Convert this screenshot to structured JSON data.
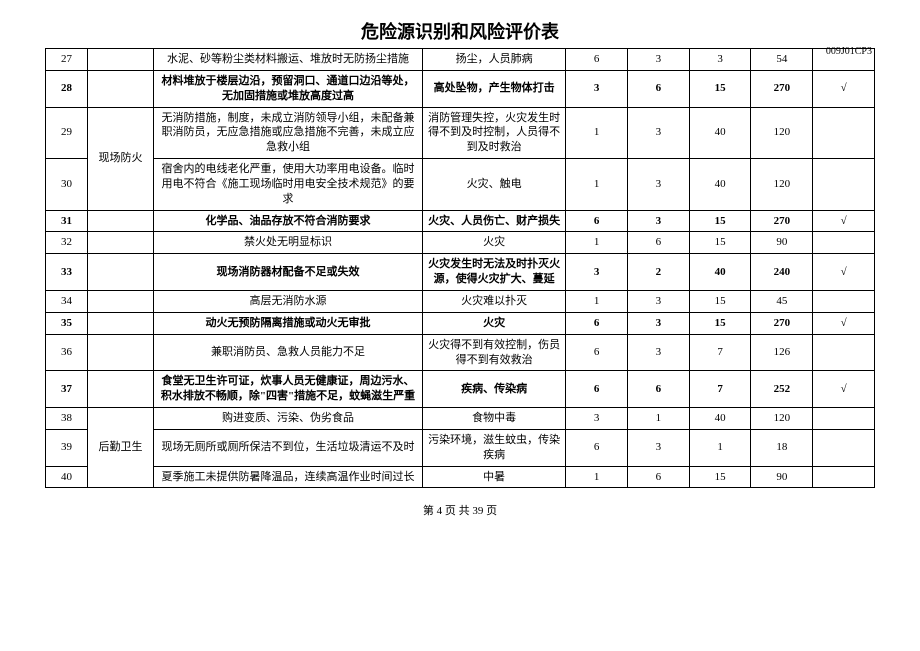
{
  "doc": {
    "title": "危险源识别和风险评价表",
    "code": "009J01CP3",
    "footer": "第 4 页 共 39 页"
  },
  "categories": {
    "cat1": "现场防火",
    "cat2": "后勤卫生"
  },
  "rows": [
    {
      "idx": "27",
      "bold": false,
      "cat": "",
      "catspan": 0,
      "desc": "水泥、砂等粉尘类材料搬运、堆放时无防扬尘措施",
      "effect": "扬尘，人员肺病",
      "c1": "6",
      "c2": "3",
      "c3": "3",
      "c4": "54",
      "chk": ""
    },
    {
      "idx": "28",
      "bold": true,
      "cat": "",
      "catspan": 0,
      "desc": "材料堆放于楼层边沿，预留洞口、通道口边沿等处，无加固措施或堆放高度过高",
      "effect": "高处坠物，产生物体打击",
      "c1": "3",
      "c2": "6",
      "c3": "15",
      "c4": "270",
      "chk": "√"
    },
    {
      "idx": "29",
      "bold": false,
      "cat": "cat1",
      "catspan": 2,
      "desc": "无消防措施，制度，未成立消防领导小组，未配备兼职消防员，无应急措施或应急措施不完善，未成立应急救小组",
      "effect": "消防管理失控，火灾发生时得不到及时控制，人员得不到及时救治",
      "c1": "1",
      "c2": "3",
      "c3": "40",
      "c4": "120",
      "chk": ""
    },
    {
      "idx": "30",
      "bold": false,
      "cat": "",
      "catspan": 0,
      "desc": "宿舍内的电线老化严重，使用大功率用电设备。临时用电不符合《施工现场临时用电安全技术规范》的要求",
      "effect": "火灾、触电",
      "c1": "1",
      "c2": "3",
      "c3": "40",
      "c4": "120",
      "chk": ""
    },
    {
      "idx": "31",
      "bold": true,
      "cat": "",
      "catspan": 0,
      "desc": "化学品、油品存放不符合消防要求",
      "effect": "火灾、人员伤亡、财产损失",
      "c1": "6",
      "c2": "3",
      "c3": "15",
      "c4": "270",
      "chk": "√"
    },
    {
      "idx": "32",
      "bold": false,
      "cat": "",
      "catspan": 0,
      "desc": "禁火处无明显标识",
      "effect": "火灾",
      "c1": "1",
      "c2": "6",
      "c3": "15",
      "c4": "90",
      "chk": ""
    },
    {
      "idx": "33",
      "bold": true,
      "cat": "",
      "catspan": 0,
      "desc": "现场消防器材配备不足或失效",
      "effect": "火灾发生时无法及时扑灭火源，使得火灾扩大、蔓延",
      "c1": "3",
      "c2": "2",
      "c3": "40",
      "c4": "240",
      "chk": "√"
    },
    {
      "idx": "34",
      "bold": false,
      "cat": "",
      "catspan": 0,
      "desc": "高层无消防水源",
      "effect": "火灾难以扑灭",
      "c1": "1",
      "c2": "3",
      "c3": "15",
      "c4": "45",
      "chk": ""
    },
    {
      "idx": "35",
      "bold": true,
      "cat": "",
      "catspan": 0,
      "desc": "动火无预防隔离措施或动火无审批",
      "effect": "火灾",
      "c1": "6",
      "c2": "3",
      "c3": "15",
      "c4": "270",
      "chk": "√"
    },
    {
      "idx": "36",
      "bold": false,
      "cat": "",
      "catspan": 0,
      "desc": "兼职消防员、急救人员能力不足",
      "effect": "火灾得不到有效控制，伤员得不到有效救治",
      "c1": "6",
      "c2": "3",
      "c3": "7",
      "c4": "126",
      "chk": ""
    },
    {
      "idx": "37",
      "bold": true,
      "cat": "",
      "catspan": 0,
      "desc": "食堂无卫生许可证，炊事人员无健康证，周边污水、积水排放不畅顺，除\"四害\"措施不足，蚊蝇滋生严重",
      "effect": "疾病、传染病",
      "c1": "6",
      "c2": "6",
      "c3": "7",
      "c4": "252",
      "chk": "√"
    },
    {
      "idx": "38",
      "bold": false,
      "cat": "cat2",
      "catspan": 3,
      "desc": "购进变质、污染、伪劣食品",
      "effect": "食物中毒",
      "c1": "3",
      "c2": "1",
      "c3": "40",
      "c4": "120",
      "chk": ""
    },
    {
      "idx": "39",
      "bold": false,
      "cat": "",
      "catspan": 0,
      "desc": "现场无厕所或厕所保洁不到位，生活垃圾清运不及时",
      "effect": "污染环境，滋生蚊虫，传染疾病",
      "c1": "6",
      "c2": "3",
      "c3": "1",
      "c4": "18",
      "chk": ""
    },
    {
      "idx": "40",
      "bold": false,
      "cat": "",
      "catspan": 0,
      "desc": "夏季施工未提供防暑降温品，连续高温作业时间过长",
      "effect": "中暑",
      "c1": "1",
      "c2": "6",
      "c3": "15",
      "c4": "90",
      "chk": ""
    }
  ]
}
